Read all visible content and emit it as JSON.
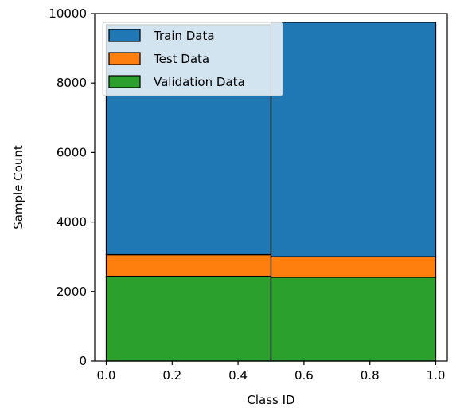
{
  "chart_data": {
    "type": "bar",
    "stacked": true,
    "title": "",
    "xlabel": "Class ID",
    "ylabel": "Sample Count",
    "xlim": [
      -0.035,
      1.035
    ],
    "ylim": [
      0,
      10000
    ],
    "xticks": [
      0.0,
      0.2,
      0.4,
      0.6,
      0.8,
      1.0
    ],
    "xtick_labels": [
      "0.0",
      "0.2",
      "0.4",
      "0.6",
      "0.8",
      "1.0"
    ],
    "yticks": [
      0,
      2000,
      4000,
      6000,
      8000,
      10000
    ],
    "ytick_labels": [
      "0",
      "2000",
      "4000",
      "6000",
      "8000",
      "10000"
    ],
    "bins": [
      [
        0.0,
        0.5
      ],
      [
        0.5,
        1.0
      ]
    ],
    "series": [
      {
        "name": "Validation Data",
        "color": "#2ca02c",
        "values": [
          2440,
          2410
        ]
      },
      {
        "name": "Test Data",
        "color": "#ff7f0e",
        "values": [
          620,
          590
        ]
      },
      {
        "name": "Train Data",
        "color": "#1f77b4",
        "values": [
          6620,
          6750
        ]
      }
    ],
    "legend": {
      "position": "top-left",
      "entries": [
        "Train Data",
        "Test Data",
        "Validation Data"
      ]
    },
    "grid": false
  }
}
